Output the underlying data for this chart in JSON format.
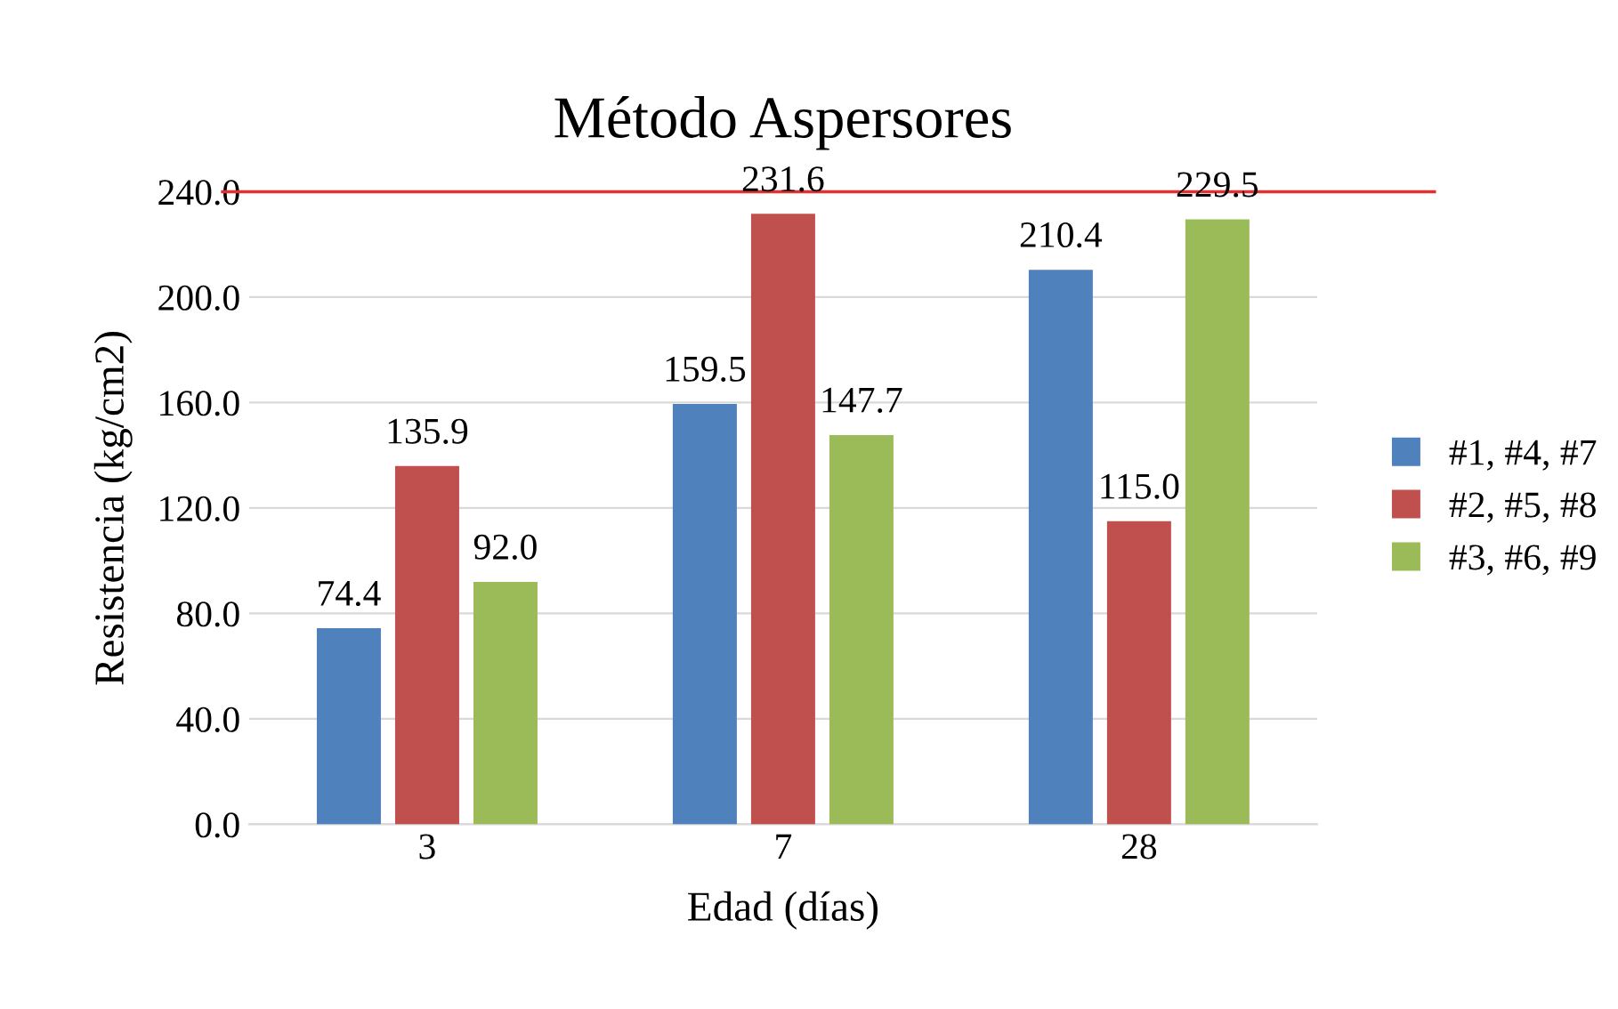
{
  "chart_data": {
    "type": "bar",
    "title": "Método Aspersores",
    "xlabel": "Edad (días)",
    "ylabel": "Resistencia (kg/cm2)",
    "categories": [
      "3",
      "7",
      "28"
    ],
    "series": [
      {
        "name": "#1, #4, #7",
        "color": "#4f81bd",
        "values": [
          74.4,
          159.5,
          210.4
        ],
        "value_labels": [
          "74.4",
          "159.5",
          "210.4"
        ]
      },
      {
        "name": "#2, #5, #8",
        "color": "#c0504d",
        "values": [
          135.9,
          231.6,
          115.0
        ],
        "value_labels": [
          "135.9",
          "231.6",
          "115.0"
        ]
      },
      {
        "name": "#3, #6, #9",
        "color": "#9bbb59",
        "values": [
          92.0,
          147.7,
          229.5
        ],
        "value_labels": [
          "92.0",
          "147.7",
          "229.5"
        ]
      }
    ],
    "ylim": [
      0,
      240
    ],
    "yticks": [
      {
        "value": 0,
        "label": "0.0"
      },
      {
        "value": 40,
        "label": "40.0"
      },
      {
        "value": 80,
        "label": "80.0"
      },
      {
        "value": 120,
        "label": "120.0"
      },
      {
        "value": 160,
        "label": "160.0"
      },
      {
        "value": 200,
        "label": "200.0"
      },
      {
        "value": 240,
        "label": "240.0"
      }
    ],
    "ref_lines": [
      {
        "axis": "y",
        "value": 240,
        "color": "#e03030"
      }
    ],
    "grid": "y",
    "legend": "right"
  }
}
